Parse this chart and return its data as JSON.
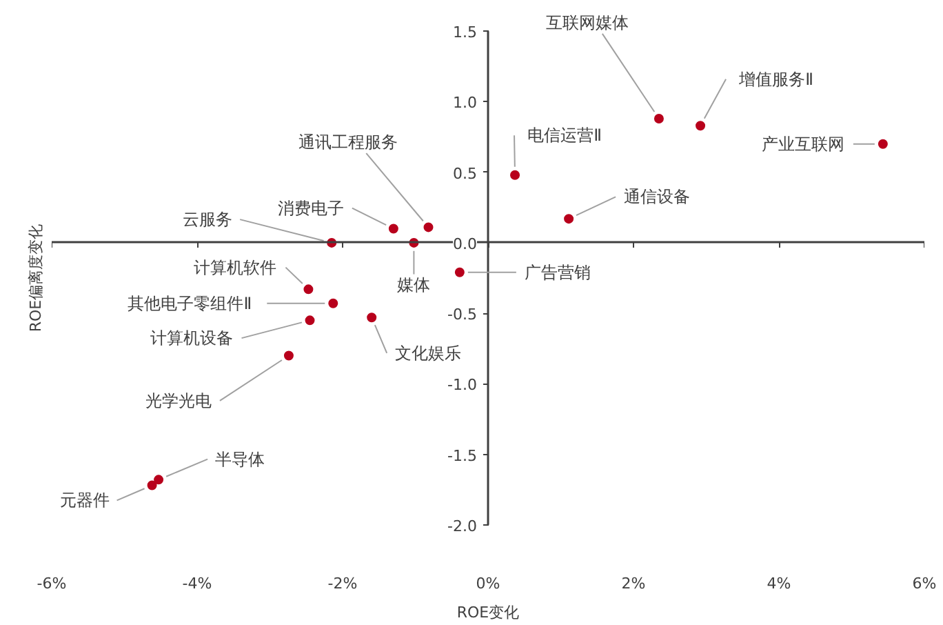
{
  "chart_data": {
    "type": "scatter",
    "xlabel": "ROE变化",
    "ylabel": "ROE偏离度变化",
    "x": [
      2.35,
      2.92,
      5.43,
      0.37,
      1.11,
      -0.39,
      -2.15,
      -1.3,
      -0.82,
      -1.02,
      -2.47,
      -2.13,
      -1.6,
      -2.45,
      -2.74,
      -4.53,
      -4.62
    ],
    "values": [
      0.88,
      0.83,
      0.7,
      0.48,
      0.17,
      -0.21,
      0.0,
      0.1,
      0.11,
      0.0,
      -0.33,
      -0.43,
      -0.53,
      -0.55,
      -0.8,
      -1.68,
      -1.72
    ],
    "color": "#b8001c",
    "marker": "circle",
    "xlim": [
      -6,
      6
    ],
    "ylim": [
      -2,
      1.5
    ],
    "xticks": [
      {
        "value": -6,
        "label": "-6%"
      },
      {
        "value": -4,
        "label": "-4%"
      },
      {
        "value": -2,
        "label": "-2%"
      },
      {
        "value": 0,
        "label": "0%"
      },
      {
        "value": 2,
        "label": "2%"
      },
      {
        "value": 4,
        "label": "4%"
      },
      {
        "value": 6,
        "label": "6%"
      }
    ],
    "yticks": [
      {
        "value": 1.5,
        "label": "1.5"
      },
      {
        "value": 1,
        "label": "1.0"
      },
      {
        "value": 0.5,
        "label": "0.5"
      },
      {
        "value": 0,
        "label": "0.0"
      },
      {
        "value": -0.5,
        "label": "-0.5"
      },
      {
        "value": -1,
        "label": "-1.0"
      },
      {
        "value": -1.5,
        "label": "-1.5"
      },
      {
        "value": -2,
        "label": "-2.0"
      }
    ],
    "annotations": [
      {
        "text": "互联网媒体",
        "x": 2.35,
        "y": 0.88
      },
      {
        "text": "增值服务Ⅱ",
        "x": 2.92,
        "y": 0.83
      },
      {
        "text": "产业互联网",
        "x": 5.43,
        "y": 0.7
      },
      {
        "text": "电信运营Ⅱ",
        "x": 0.37,
        "y": 0.48
      },
      {
        "text": "通信设备",
        "x": 1.11,
        "y": 0.17
      },
      {
        "text": "广告营销",
        "x": -0.39,
        "y": -0.21
      },
      {
        "text": "云服务",
        "x": -2.15,
        "y": 0.0
      },
      {
        "text": "消费电子",
        "x": -1.3,
        "y": 0.1
      },
      {
        "text": "通讯工程服务",
        "x": -0.82,
        "y": 0.11
      },
      {
        "text": "媒体",
        "x": -1.02,
        "y": 0.0
      },
      {
        "text": "计算机软件",
        "x": -2.47,
        "y": -0.33
      },
      {
        "text": "其他电子零组件Ⅱ",
        "x": -2.13,
        "y": -0.43
      },
      {
        "text": "文化娱乐",
        "x": -1.6,
        "y": -0.53
      },
      {
        "text": "计算机设备",
        "x": -2.45,
        "y": -0.55
      },
      {
        "text": "光学光电",
        "x": -2.74,
        "y": -0.8
      },
      {
        "text": "半导体",
        "x": -4.53,
        "y": -1.68
      },
      {
        "text": "元器件",
        "x": -4.62,
        "y": -1.72
      }
    ]
  }
}
